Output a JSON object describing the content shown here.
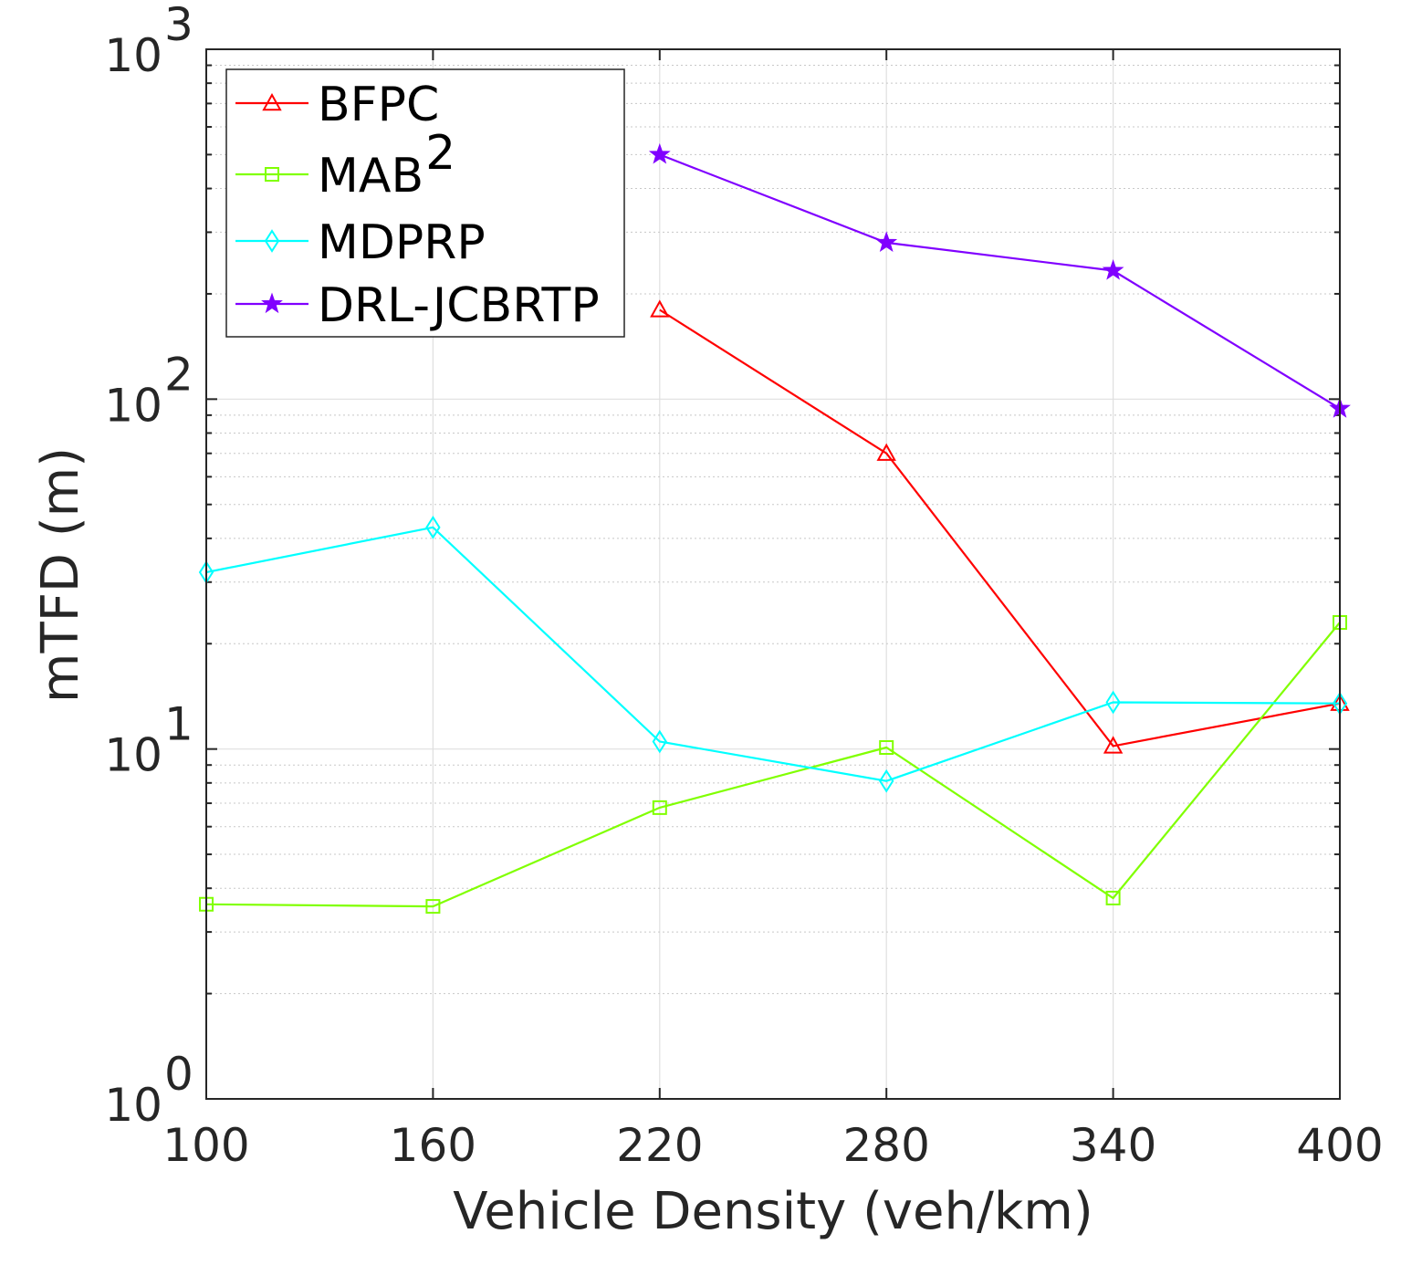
{
  "chart_data": {
    "type": "line",
    "title": "",
    "xlabel": "Vehicle Density (veh/km)",
    "ylabel": "mTFD (m)",
    "yscale": "log",
    "xlim": [
      100,
      400
    ],
    "ylim": [
      1,
      1000
    ],
    "x": [
      100,
      160,
      220,
      280,
      340,
      400
    ],
    "x_tick_labels": [
      "100",
      "160",
      "220",
      "280",
      "340",
      "400"
    ],
    "y_ticks": [
      {
        "base": "10",
        "exp": "0"
      },
      {
        "base": "10",
        "exp": "1"
      },
      {
        "base": "10",
        "exp": "2"
      },
      {
        "base": "10",
        "exp": "3"
      }
    ],
    "grid": true,
    "legend_position": "top-left",
    "series": [
      {
        "name": "BFPC",
        "name_sup": "",
        "color": "#ff0000",
        "marker": "triangle",
        "x": [
          220,
          280,
          340,
          400
        ],
        "values": [
          180,
          70,
          10.2,
          13.5
        ]
      },
      {
        "name": "MAB",
        "name_sup": "2",
        "color": "#80ff00",
        "marker": "square",
        "x": [
          100,
          160,
          220,
          280,
          340,
          400
        ],
        "values": [
          3.6,
          3.55,
          6.8,
          10.1,
          3.75,
          23
        ]
      },
      {
        "name": "MDPRP",
        "name_sup": "",
        "color": "#00ffff",
        "marker": "diamond",
        "x": [
          100,
          160,
          220,
          280,
          340,
          400
        ],
        "values": [
          32,
          43,
          10.5,
          8.1,
          13.6,
          13.5
        ]
      },
      {
        "name": "DRL-JCBRTP",
        "name_sup": "",
        "color": "#8000ff",
        "marker": "star",
        "x": [
          220,
          280,
          340,
          400
        ],
        "values": [
          500,
          280,
          233,
          94
        ]
      }
    ]
  }
}
